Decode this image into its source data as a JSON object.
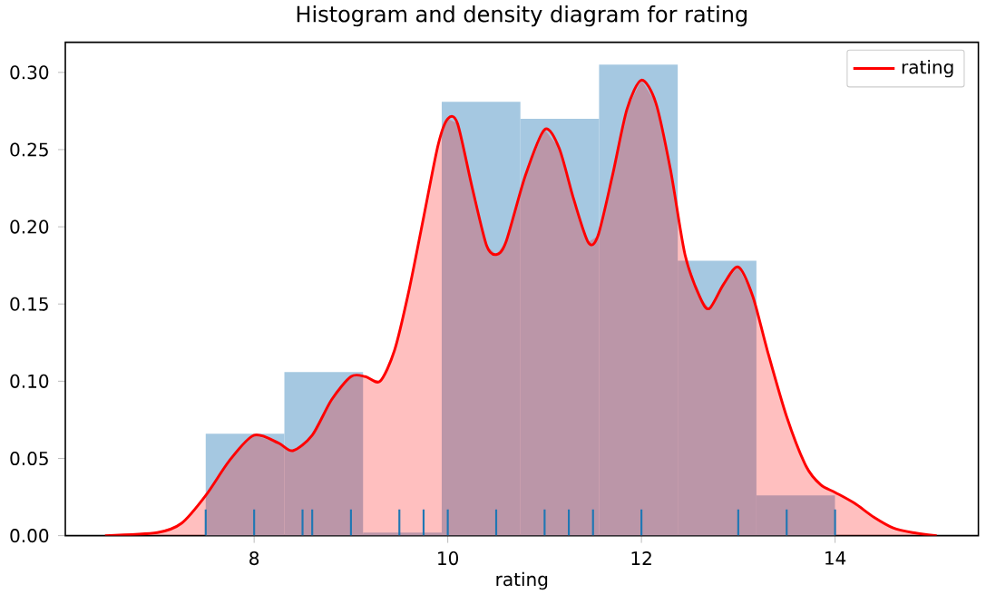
{
  "chart_data": {
    "type": "histogram",
    "title": "Histogram and density diagram for rating",
    "xlabel": "rating",
    "xlim": [
      6.05,
      15.48
    ],
    "ylim": [
      0,
      0.3195
    ],
    "xticks": [
      8,
      10,
      12,
      14
    ],
    "yticks": [
      {
        "value": 0,
        "label": "0.00"
      },
      {
        "value": 0.05,
        "label": "0.05"
      },
      {
        "value": 0.1,
        "label": "0.10"
      },
      {
        "value": 0.15,
        "label": "0.15"
      },
      {
        "value": 0.2,
        "label": "0.20"
      },
      {
        "value": 0.25,
        "label": "0.25"
      },
      {
        "value": 0.3,
        "label": "0.30"
      }
    ],
    "legend": "top right",
    "series": [
      {
        "type": "histogram",
        "color": "#a5c8e1",
        "bins": [
          7.5,
          8.3125,
          9.125,
          9.9375,
          10.75,
          11.5625,
          12.375,
          13.1875,
          14.0
        ],
        "values": [
          0.066,
          0.106,
          0.002,
          0.281,
          0.27,
          0.305,
          0.178,
          0.026
        ]
      },
      {
        "type": "area",
        "name": "rating",
        "color": "#ff0000",
        "x": [
          6.46,
          7.0,
          7.25,
          7.5,
          7.75,
          8.0,
          8.25,
          8.4,
          8.6,
          8.8,
          9.0,
          9.15,
          9.3,
          9.45,
          9.6,
          9.75,
          9.9,
          10.0,
          10.1,
          10.25,
          10.4,
          10.5,
          10.6,
          10.8,
          11.0,
          11.15,
          11.3,
          11.45,
          11.55,
          11.7,
          11.85,
          12.0,
          12.15,
          12.3,
          12.45,
          12.6,
          12.7,
          12.85,
          13.0,
          13.15,
          13.3,
          13.5,
          13.7,
          13.85,
          14.0,
          14.2,
          14.4,
          14.6,
          14.8,
          15.05
        ],
        "values": [
          0.0,
          0.002,
          0.008,
          0.026,
          0.049,
          0.065,
          0.06,
          0.055,
          0.065,
          0.088,
          0.103,
          0.103,
          0.1,
          0.12,
          0.159,
          0.206,
          0.253,
          0.27,
          0.267,
          0.226,
          0.188,
          0.182,
          0.19,
          0.233,
          0.263,
          0.251,
          0.218,
          0.19,
          0.194,
          0.233,
          0.276,
          0.295,
          0.28,
          0.237,
          0.182,
          0.155,
          0.147,
          0.163,
          0.174,
          0.155,
          0.12,
          0.077,
          0.045,
          0.033,
          0.028,
          0.021,
          0.012,
          0.005,
          0.002,
          0.0
        ]
      },
      {
        "type": "bar",
        "color": "#1f77b4",
        "x": [
          7.5,
          8,
          8.5,
          8.6,
          9,
          9.5,
          9.75,
          10,
          10.5,
          11,
          11.25,
          11.5,
          12,
          13,
          13.5,
          14
        ],
        "values": [
          0.017,
          0.017,
          0.017,
          0.017,
          0.017,
          0.017,
          0.017,
          0.017,
          0.017,
          0.017,
          0.017,
          0.017,
          0.017,
          0.017,
          0.017,
          0.017
        ]
      }
    ]
  }
}
